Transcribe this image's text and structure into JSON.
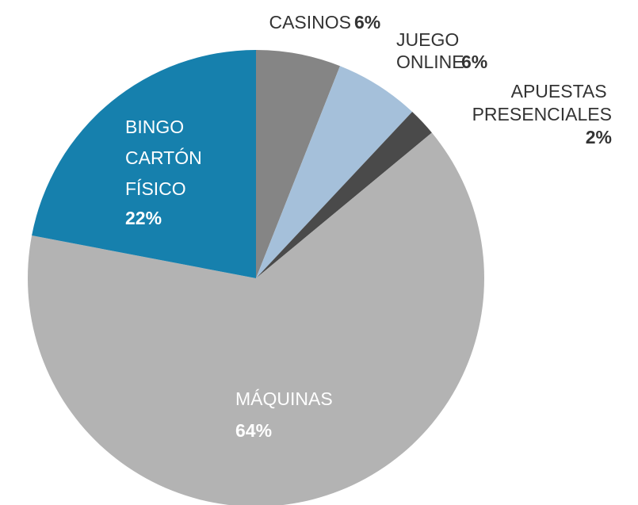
{
  "chart_data": {
    "type": "pie",
    "categories": [
      "CASINOS",
      "JUEGO ONLINE",
      "APUESTAS PRESENCIALES",
      "MÁQUINAS",
      "BINGO CARTÓN FÍSICO"
    ],
    "values": [
      6,
      6,
      2,
      64,
      22
    ],
    "value_labels": [
      "6%",
      "6%",
      "2%",
      "64%",
      "22%"
    ],
    "colors": [
      "#858585",
      "#a5c0da",
      "#4a4a4a",
      "#b3b3b3",
      "#1680ad"
    ]
  }
}
